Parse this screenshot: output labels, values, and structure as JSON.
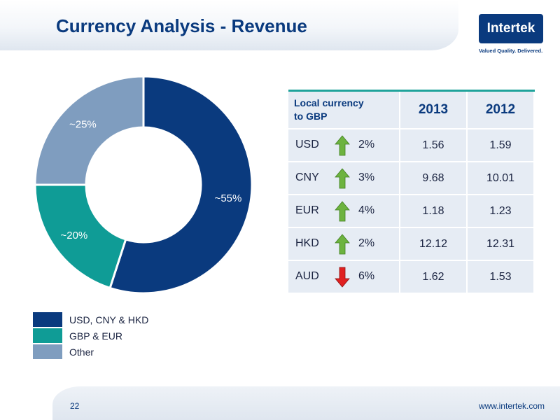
{
  "header": {
    "title": "Currency Analysis - Revenue"
  },
  "logo": {
    "text": "Intertek",
    "tagline": "Valued Quality. Delivered."
  },
  "chart_data": {
    "type": "pie",
    "donut": true,
    "categories": [
      "USD, CNY & HKD",
      "GBP & EUR",
      "Other"
    ],
    "values": [
      55,
      20,
      25
    ],
    "labels": [
      "~55%",
      "~20%",
      "~25%"
    ],
    "colors": [
      "#0a3a7e",
      "#0f9c96",
      "#7f9dbf"
    ],
    "legend_position": "bottom-left"
  },
  "legend": {
    "items": [
      {
        "label": "USD, CNY & HKD",
        "color": "#0a3a7e"
      },
      {
        "label": "GBP & EUR",
        "color": "#0f9c96"
      },
      {
        "label": "Other",
        "color": "#7f9dbf"
      }
    ]
  },
  "table": {
    "header_line1": "Local currency",
    "header_line2": "to GBP",
    "year1": "2013",
    "year2": "2012",
    "rows": [
      {
        "code": "USD",
        "direction": "up",
        "pct": "2%",
        "v2013": "1.56",
        "v2012": "1.59"
      },
      {
        "code": "CNY",
        "direction": "up",
        "pct": "3%",
        "v2013": "9.68",
        "v2012": "10.01"
      },
      {
        "code": "EUR",
        "direction": "up",
        "pct": "4%",
        "v2013": "1.18",
        "v2012": "1.23"
      },
      {
        "code": "HKD",
        "direction": "up",
        "pct": "2%",
        "v2013": "12.12",
        "v2012": "12.31"
      },
      {
        "code": "AUD",
        "direction": "down",
        "pct": "6%",
        "v2013": "1.62",
        "v2012": "1.53"
      }
    ]
  },
  "colors": {
    "brand": "#0a3a7e",
    "teal": "#1fa39b",
    "arrow_up": "#6db33f",
    "arrow_down": "#e02020"
  },
  "footer": {
    "page": "22",
    "url": "www.intertek.com"
  }
}
